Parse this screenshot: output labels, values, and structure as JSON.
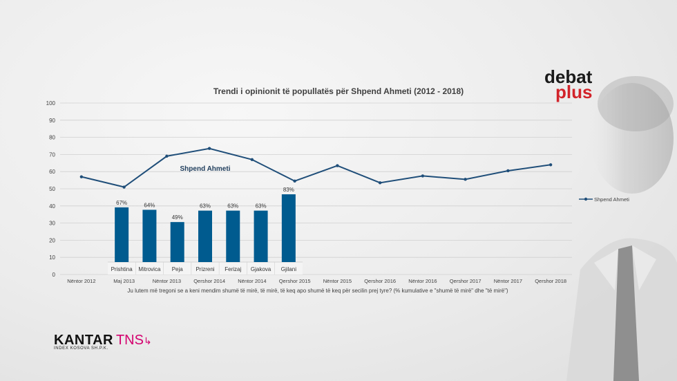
{
  "chart_data": [
    {
      "type": "line",
      "title": "Trendi i opinionit të popullatës për Shpend Ahmeti",
      "title_years": "(2012 - 2018)",
      "categories": [
        "Nëntor 2012",
        "Maj 2013",
        "Nëntor 2013",
        "Qershor 2014",
        "Nëntor 2014",
        "Qershor 2015",
        "Nëntor 2015",
        "Qershor 2016",
        "Nëntor 2016",
        "Qershor 2017",
        "Nëntor 2017",
        "Qershor 2018"
      ],
      "series": [
        {
          "name": "Shpend Ahmeti",
          "values": [
            57,
            51,
            69,
            73.5,
            67,
            54.5,
            63.5,
            53.5,
            57.5,
            55.5,
            60.5,
            64
          ],
          "color": "#1f4e79"
        }
      ],
      "annotation": "Shpend Ahmeti",
      "ylim": [
        0,
        100
      ],
      "yticks": [
        0,
        10,
        20,
        30,
        40,
        50,
        60,
        70,
        80,
        90,
        100
      ],
      "grid": true,
      "legend": "right"
    },
    {
      "type": "bar",
      "categories": [
        "Prishtina",
        "Mitrovica",
        "Peja",
        "Prizreni",
        "Ferizaj",
        "Gjakova",
        "Gjilani"
      ],
      "values": [
        67,
        64,
        49,
        63,
        63,
        63,
        83
      ],
      "value_labels": [
        "67%",
        "64%",
        "49%",
        "63%",
        "63%",
        "63%",
        "83%"
      ],
      "color": "#005b8f"
    }
  ],
  "footnote": "Ju lutem më tregoni se a keni mendim shumë të mirë, të mirë, të keq apo shumë të keq për secilin prej tyre? (% kumulative e \"shumë të mirë\" dhe \"të mirë\")",
  "logos": {
    "debat": "debat",
    "plus": "plus",
    "kantar": "KANTAR",
    "tns": "TNS",
    "kantar_sub": "INDEX KOSOVA SH.P.K."
  }
}
